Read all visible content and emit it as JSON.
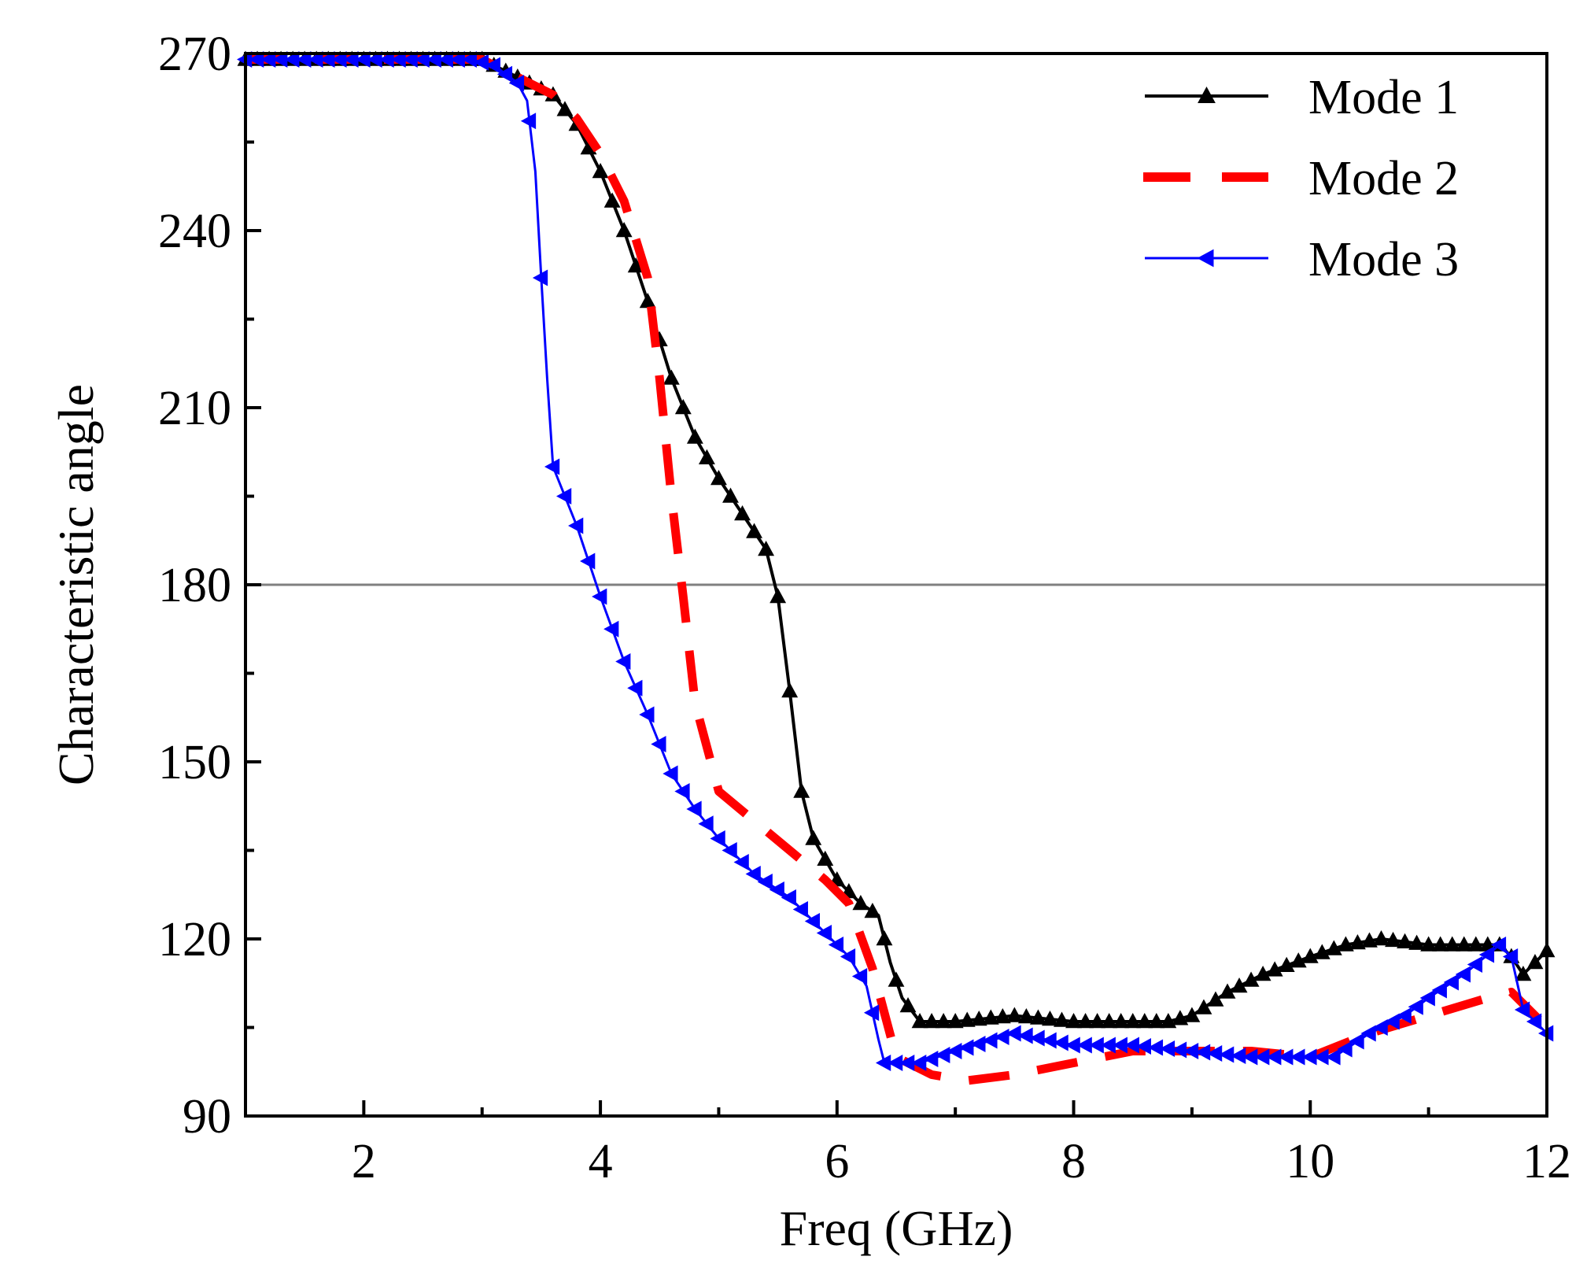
{
  "chart_data": {
    "type": "line",
    "xlabel": "Freq (GHz)",
    "ylabel": "Characteristic angle",
    "xlim": [
      1,
      12
    ],
    "ylim": [
      90,
      270
    ],
    "xticks": [
      2,
      4,
      6,
      8,
      10,
      12
    ],
    "yticks": [
      90,
      120,
      150,
      180,
      210,
      240,
      270
    ],
    "reference_line": {
      "y": 180,
      "color": "#808080"
    },
    "legend_position": "top-right",
    "series": [
      {
        "name": "Mode 1",
        "color": "#000000",
        "style": "solid",
        "marker": "triangle-up",
        "x": [
          1.0,
          1.5,
          2.0,
          2.5,
          2.8,
          3.0,
          3.2,
          3.4,
          3.6,
          3.8,
          4.0,
          4.2,
          4.4,
          4.6,
          4.8,
          5.0,
          5.2,
          5.4,
          5.5,
          5.6,
          5.7,
          5.8,
          6.0,
          6.2,
          6.35,
          6.45,
          6.55,
          6.7,
          7.0,
          7.5,
          8.0,
          8.5,
          8.8,
          9.0,
          9.3,
          9.6,
          10.0,
          10.3,
          10.6,
          11.0,
          11.3,
          11.6,
          11.7,
          11.8,
          12.0
        ],
        "y": [
          269,
          269,
          269,
          269,
          269,
          269,
          267,
          265,
          263,
          258,
          250,
          240,
          228,
          215,
          205,
          198,
          192,
          186,
          178,
          162,
          145,
          137,
          130,
          126,
          124,
          116,
          110,
          106,
          106,
          107,
          106,
          106,
          106,
          107,
          111,
          114,
          117,
          119,
          120,
          119,
          119,
          119,
          117,
          114,
          118
        ]
      },
      {
        "name": "Mode 2",
        "color": "#ff0000",
        "style": "dashed",
        "marker": "none",
        "x": [
          1.0,
          2.0,
          3.0,
          3.3,
          3.6,
          3.8,
          4.0,
          4.2,
          4.4,
          4.5,
          4.6,
          4.7,
          4.8,
          5.0,
          5.3,
          5.6,
          5.9,
          6.1,
          6.3,
          6.5,
          6.8,
          7.1,
          7.5,
          8.0,
          8.5,
          9.0,
          9.5,
          10.0,
          10.5,
          11.0,
          11.5,
          11.7,
          12.0
        ],
        "y": [
          269,
          269,
          269,
          266,
          263,
          259,
          253,
          245,
          232,
          215,
          195,
          178,
          160,
          145,
          140,
          135,
          130,
          126,
          115,
          100,
          97,
          96,
          97,
          99,
          101,
          101,
          101,
          100,
          104,
          107,
          110,
          111,
          105
        ]
      },
      {
        "name": "Mode 3",
        "color": "#0000ff",
        "style": "solid",
        "marker": "triangle-left",
        "x": [
          1.0,
          2.0,
          2.9,
          3.1,
          3.3,
          3.38,
          3.45,
          3.5,
          3.55,
          3.6,
          3.8,
          4.0,
          4.2,
          4.4,
          4.6,
          4.8,
          5.0,
          5.3,
          5.6,
          5.9,
          6.1,
          6.25,
          6.35,
          6.4,
          6.7,
          7.0,
          7.5,
          8.0,
          8.5,
          9.0,
          9.5,
          10.0,
          10.2,
          10.5,
          10.8,
          11.0,
          11.3,
          11.6,
          11.7,
          11.8,
          12.0
        ],
        "y": [
          269,
          269,
          269,
          268,
          265,
          262,
          250,
          232,
          215,
          200,
          190,
          178,
          167,
          158,
          148,
          142,
          137,
          131,
          127,
          121,
          117,
          112,
          103,
          99,
          99,
          101,
          104,
          102,
          102,
          101,
          100,
          100,
          100,
          104,
          107,
          110,
          114,
          119,
          117,
          108,
          104
        ]
      }
    ]
  }
}
